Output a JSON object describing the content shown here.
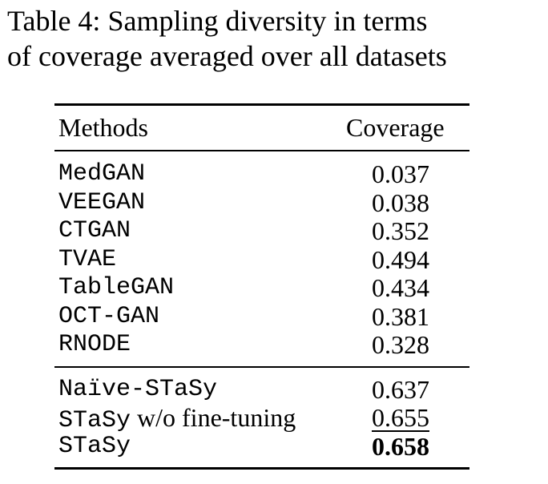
{
  "caption": {
    "line1": "Table 4:  Sampling diversity in terms",
    "line2": "of coverage averaged over all datasets"
  },
  "table": {
    "headers": {
      "methods": "Methods",
      "coverage": "Coverage"
    },
    "baselines": [
      {
        "method": "MedGAN",
        "coverage": "0.037"
      },
      {
        "method": "VEEGAN",
        "coverage": "0.038"
      },
      {
        "method": "CTGAN",
        "coverage": "0.352"
      },
      {
        "method": "TVAE",
        "coverage": "0.494"
      },
      {
        "method": "TableGAN",
        "coverage": "0.434"
      },
      {
        "method": "OCT-GAN",
        "coverage": "0.381"
      },
      {
        "method": "RNODE",
        "coverage": "0.328"
      }
    ],
    "ours": [
      {
        "method": "Naïve-STaSy",
        "coverage": "0.637"
      },
      {
        "method_mono": "STaSy",
        "method_suffix": " w/o fine-tuning",
        "coverage": "0.655"
      },
      {
        "method": "STaSy",
        "coverage": "0.658"
      }
    ]
  }
}
